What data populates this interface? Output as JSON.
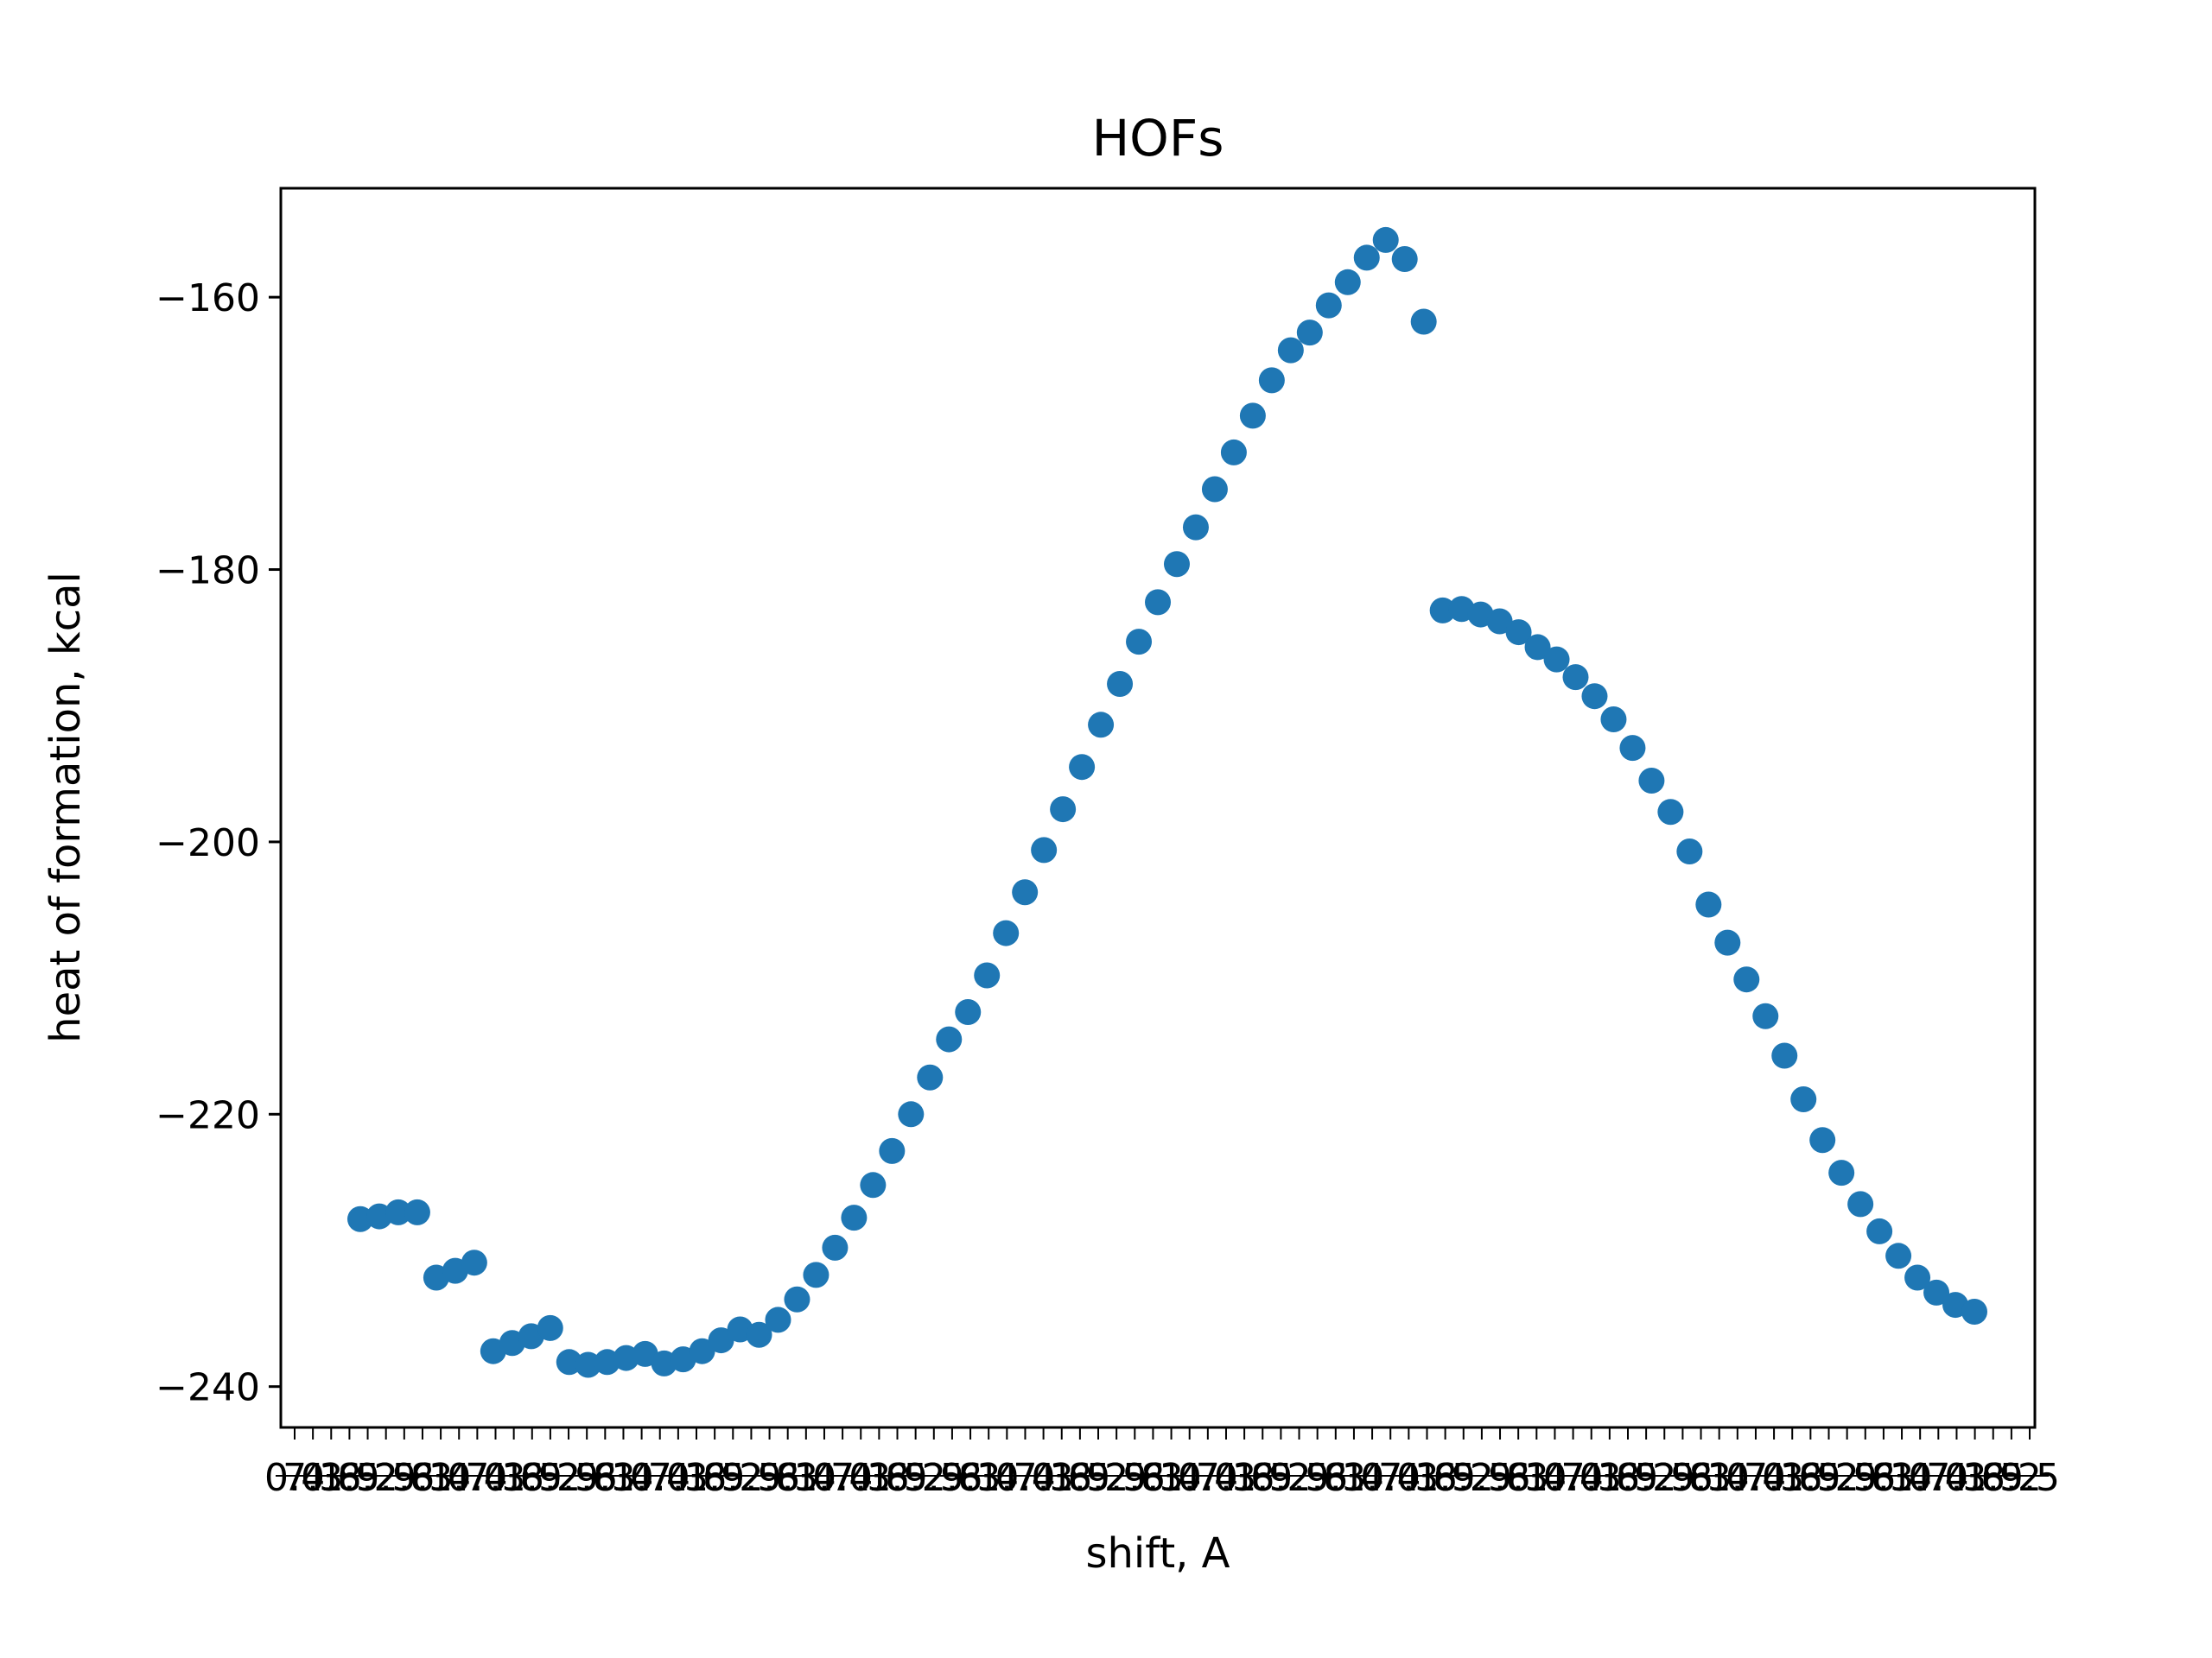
{
  "chart_data": {
    "type": "scatter",
    "title": "HOFs",
    "xlabel": "shift, A",
    "ylabel": "heat of formation, kcal",
    "ylim": [
      -243,
      -152
    ],
    "yticks": [
      -240,
      -220,
      -200,
      -180,
      -160
    ],
    "ytick_labels": [
      "−240",
      "−220",
      "−200",
      "−180",
      "−160"
    ],
    "grid": false,
    "legend": "none",
    "marker_color": "#1f77b4",
    "x_tick_count": 96,
    "x_tick_labels_note": "overlapping, illegible tick labels",
    "series": [
      {
        "values": [
          -227.7,
          -227.5,
          -227.2,
          -227.2,
          -232.0,
          -231.5,
          -230.9,
          -237.4,
          -236.8,
          -236.3,
          -235.7,
          -238.2,
          -238.4,
          -238.2,
          -237.9,
          -237.6,
          -238.3,
          -238.0,
          -237.4,
          -236.6,
          -235.8,
          -236.2,
          -235.1,
          -233.6,
          -231.8,
          -229.8,
          -227.6,
          -225.2,
          -222.7,
          -220.0,
          -217.3,
          -214.5,
          -212.5,
          -209.8,
          -206.7,
          -203.7,
          -200.6,
          -197.6,
          -194.5,
          -191.4,
          -188.4,
          -185.3,
          -182.4,
          -179.6,
          -176.9,
          -174.1,
          -171.4,
          -168.7,
          -166.1,
          -163.9,
          -162.6,
          -160.6,
          -158.9,
          -157.1,
          -155.8,
          -157.2,
          -161.8,
          -183.0,
          -182.9,
          -183.3,
          -183.8,
          -184.6,
          -185.7,
          -186.6,
          -187.9,
          -189.3,
          -191.0,
          -193.1,
          -195.5,
          -197.8,
          -200.7,
          -204.6,
          -207.4,
          -210.1,
          -212.8,
          -215.7,
          -218.9,
          -221.9,
          -224.3,
          -226.6,
          -228.6,
          -230.4,
          -232.0,
          -233.1,
          -234.0,
          -234.5
        ]
      }
    ]
  }
}
